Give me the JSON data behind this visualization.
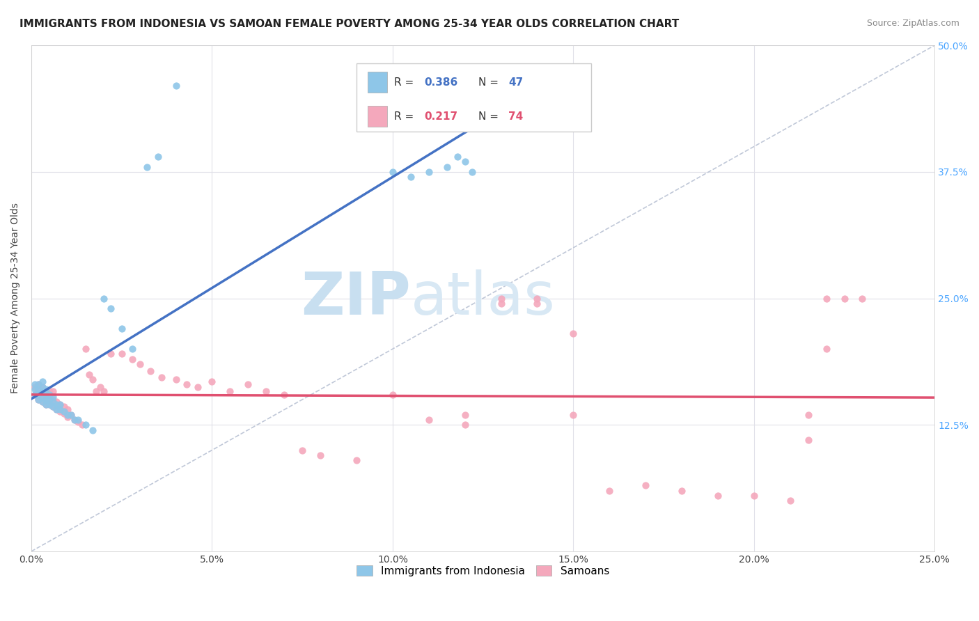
{
  "title": "IMMIGRANTS FROM INDONESIA VS SAMOAN FEMALE POVERTY AMONG 25-34 YEAR OLDS CORRELATION CHART",
  "source": "Source: ZipAtlas.com",
  "ylabel": "Female Poverty Among 25-34 Year Olds",
  "xlim": [
    0.0,
    0.25
  ],
  "ylim": [
    0.0,
    0.5
  ],
  "xtick_vals": [
    0.0,
    0.05,
    0.1,
    0.15,
    0.2,
    0.25
  ],
  "xtick_labels": [
    "0.0%",
    "5.0%",
    "10.0%",
    "15.0%",
    "20.0%",
    "25.0%"
  ],
  "ytick_vals": [
    0.0,
    0.125,
    0.25,
    0.375,
    0.5
  ],
  "ytick_labels_right": [
    "",
    "12.5%",
    "25.0%",
    "37.5%",
    "50.0%"
  ],
  "r1": "0.386",
  "n1": "47",
  "r2": "0.217",
  "n2": "74",
  "color_blue": "#8ec6e8",
  "color_pink": "#f4a8bc",
  "color_line_blue": "#4472c4",
  "color_line_pink": "#e05070",
  "color_diag": "#c0c8d8",
  "watermark_zip": "ZIP",
  "watermark_atlas": "atlas",
  "watermark_color": "#cce0f0",
  "watermark_color2": "#b8cfe8",
  "background_color": "#ffffff",
  "grid_color": "#e0e0e8",
  "blue_x": [
    0.001,
    0.001,
    0.001,
    0.002,
    0.002,
    0.002,
    0.002,
    0.003,
    0.003,
    0.003,
    0.003,
    0.003,
    0.004,
    0.004,
    0.004,
    0.004,
    0.005,
    0.005,
    0.005,
    0.006,
    0.006,
    0.006,
    0.007,
    0.007,
    0.008,
    0.008,
    0.009,
    0.01,
    0.011,
    0.012,
    0.013,
    0.015,
    0.017,
    0.02,
    0.022,
    0.025,
    0.028,
    0.032,
    0.035,
    0.04,
    0.1,
    0.105,
    0.11,
    0.115,
    0.118,
    0.12,
    0.122
  ],
  "blue_y": [
    0.155,
    0.16,
    0.165,
    0.15,
    0.155,
    0.16,
    0.165,
    0.148,
    0.152,
    0.158,
    0.162,
    0.168,
    0.145,
    0.15,
    0.155,
    0.16,
    0.145,
    0.15,
    0.155,
    0.143,
    0.148,
    0.153,
    0.14,
    0.145,
    0.14,
    0.145,
    0.138,
    0.135,
    0.135,
    0.13,
    0.13,
    0.125,
    0.12,
    0.25,
    0.24,
    0.22,
    0.2,
    0.38,
    0.39,
    0.46,
    0.375,
    0.37,
    0.375,
    0.38,
    0.39,
    0.385,
    0.375
  ],
  "pink_x": [
    0.001,
    0.001,
    0.002,
    0.002,
    0.002,
    0.003,
    0.003,
    0.003,
    0.004,
    0.004,
    0.004,
    0.005,
    0.005,
    0.005,
    0.006,
    0.006,
    0.006,
    0.007,
    0.007,
    0.008,
    0.008,
    0.009,
    0.009,
    0.01,
    0.01,
    0.011,
    0.012,
    0.013,
    0.014,
    0.015,
    0.016,
    0.017,
    0.018,
    0.019,
    0.02,
    0.022,
    0.025,
    0.028,
    0.03,
    0.033,
    0.036,
    0.04,
    0.043,
    0.046,
    0.05,
    0.055,
    0.06,
    0.065,
    0.07,
    0.075,
    0.08,
    0.09,
    0.1,
    0.11,
    0.12,
    0.13,
    0.14,
    0.15,
    0.16,
    0.17,
    0.18,
    0.19,
    0.2,
    0.21,
    0.215,
    0.22,
    0.225,
    0.23,
    0.22,
    0.215,
    0.12,
    0.13,
    0.14,
    0.15
  ],
  "pink_y": [
    0.155,
    0.162,
    0.15,
    0.158,
    0.165,
    0.148,
    0.155,
    0.162,
    0.145,
    0.152,
    0.158,
    0.145,
    0.15,
    0.158,
    0.143,
    0.15,
    0.158,
    0.14,
    0.148,
    0.138,
    0.145,
    0.136,
    0.143,
    0.133,
    0.14,
    0.135,
    0.13,
    0.128,
    0.125,
    0.2,
    0.175,
    0.17,
    0.158,
    0.162,
    0.158,
    0.195,
    0.195,
    0.19,
    0.185,
    0.178,
    0.172,
    0.17,
    0.165,
    0.162,
    0.168,
    0.158,
    0.165,
    0.158,
    0.155,
    0.1,
    0.095,
    0.09,
    0.155,
    0.13,
    0.125,
    0.245,
    0.245,
    0.215,
    0.06,
    0.065,
    0.06,
    0.055,
    0.055,
    0.05,
    0.135,
    0.25,
    0.25,
    0.25,
    0.2,
    0.11,
    0.135,
    0.25,
    0.25,
    0.135
  ]
}
